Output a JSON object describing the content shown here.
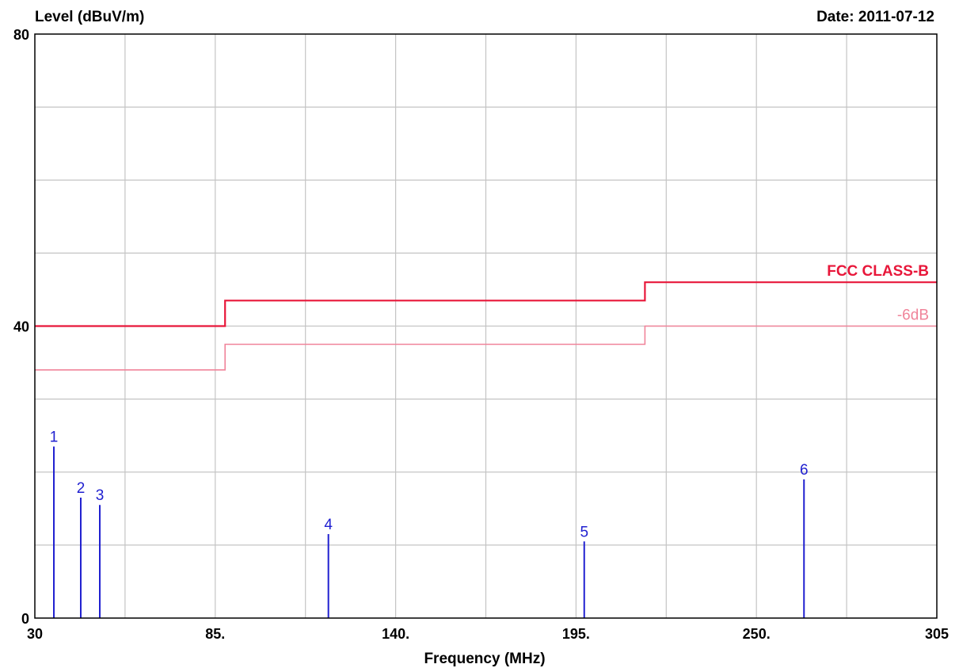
{
  "chart_data": {
    "type": "line",
    "ylabel": "Level (dBuV/m)",
    "date_label": "Date: 2011-07-12",
    "xlabel": "Frequency (MHz)",
    "xlim": [
      30,
      305
    ],
    "ylim": [
      0,
      80
    ],
    "x_ticks": [
      30,
      85,
      140,
      195,
      250,
      305
    ],
    "x_tick_labels": [
      "30",
      "85.",
      "140.",
      "195.",
      "250.",
      "305"
    ],
    "y_ticks": [
      0,
      40,
      80
    ],
    "y_tick_labels": [
      "0",
      "40",
      "80"
    ],
    "grid": true,
    "series": [
      {
        "name": "FCC CLASS-B",
        "color": "#e8173a",
        "style": "step",
        "x": [
          30,
          88,
          88,
          216,
          216,
          305
        ],
        "y": [
          40,
          40,
          43.5,
          43.5,
          46,
          46
        ]
      },
      {
        "name": "-6dB",
        "color": "#f0849a",
        "style": "step",
        "x": [
          30,
          88,
          88,
          216,
          216,
          305
        ],
        "y": [
          34,
          34,
          37.5,
          37.5,
          40,
          40
        ]
      }
    ],
    "markers": {
      "color": "#2020d0",
      "labels": [
        "1",
        "2",
        "3",
        "4",
        "5",
        "6"
      ],
      "x": [
        35.8,
        44,
        49.8,
        119.5,
        197.5,
        264.5
      ],
      "y": [
        23.5,
        16.5,
        15.5,
        11.5,
        10.5,
        19
      ]
    }
  }
}
